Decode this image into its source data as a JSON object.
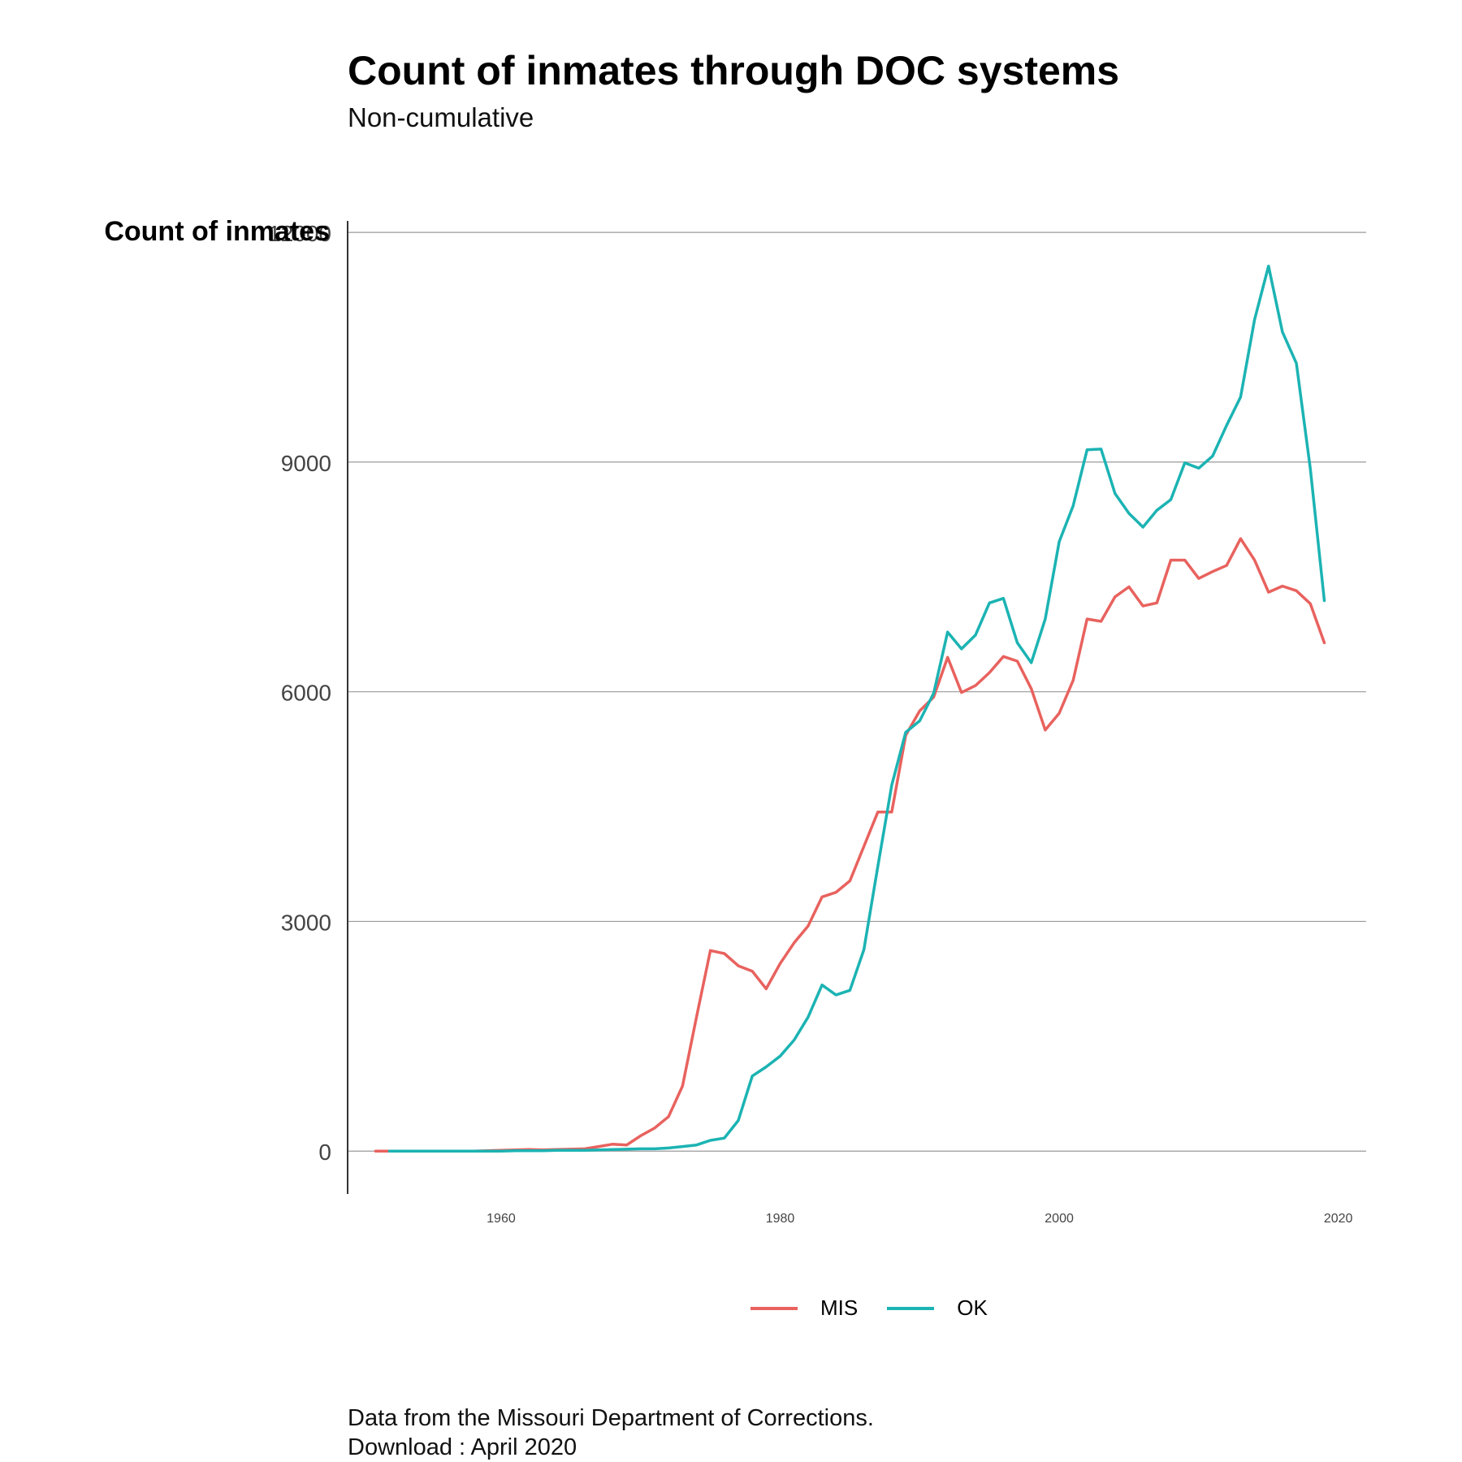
{
  "chart_data": {
    "type": "line",
    "title": "Count of inmates through DOC systems",
    "subtitle": "Non-cumulative",
    "ylabel": "Count of inmates",
    "xlabel": "",
    "xlim": [
      1949,
      2022
    ],
    "ylim": [
      -560,
      12150
    ],
    "yticks": [
      0,
      3000,
      6000,
      9000,
      12000
    ],
    "ytick_labels": [
      "0",
      "3000",
      "6000",
      "9000",
      "12000"
    ],
    "xticks": [
      1960,
      1980,
      2000,
      2020
    ],
    "xtick_labels": [
      "1960",
      "1980",
      "2000",
      "2020"
    ],
    "grid": "horizontal",
    "legend_position": "bottom",
    "series": [
      {
        "name": "MIS",
        "color": "#E8625E",
        "x": [
          1951,
          1952,
          1953,
          1954,
          1955,
          1956,
          1957,
          1958,
          1959,
          1960,
          1961,
          1962,
          1963,
          1964,
          1965,
          1966,
          1967,
          1968,
          1969,
          1970,
          1971,
          1972,
          1973,
          1974,
          1975,
          1976,
          1977,
          1978,
          1979,
          1980,
          1981,
          1982,
          1983,
          1984,
          1985,
          1986,
          1987,
          1988,
          1989,
          1990,
          1991,
          1992,
          1993,
          1994,
          1995,
          1996,
          1997,
          1998,
          1999,
          2000,
          2001,
          2002,
          2003,
          2004,
          2005,
          2006,
          2007,
          2008,
          2009,
          2010,
          2011,
          2012,
          2013,
          2014,
          2015,
          2016,
          2017,
          2018,
          2019
        ],
        "y": [
          0,
          0,
          0,
          0,
          0,
          0,
          0,
          0,
          5,
          10,
          15,
          20,
          15,
          20,
          25,
          30,
          60,
          90,
          80,
          200,
          300,
          450,
          850,
          1750,
          2620,
          2580,
          2420,
          2350,
          2120,
          2450,
          2720,
          2940,
          3320,
          3380,
          3530,
          3980,
          4430,
          4430,
          5430,
          5750,
          5930,
          6450,
          5990,
          6080,
          6250,
          6460,
          6400,
          6040,
          5500,
          5720,
          6150,
          6950,
          6920,
          7240,
          7370,
          7120,
          7160,
          7720,
          7720,
          7480,
          7570,
          7650,
          8000,
          7720,
          7300,
          7380,
          7320,
          7150,
          6640
        ]
      },
      {
        "name": "OK",
        "color": "#1CB3B3",
        "x": [
          1952,
          1953,
          1954,
          1955,
          1956,
          1957,
          1958,
          1959,
          1960,
          1961,
          1962,
          1963,
          1964,
          1965,
          1966,
          1967,
          1968,
          1969,
          1970,
          1971,
          1972,
          1973,
          1974,
          1975,
          1976,
          1977,
          1978,
          1979,
          1980,
          1981,
          1982,
          1983,
          1984,
          1985,
          1986,
          1987,
          1988,
          1989,
          1990,
          1991,
          1992,
          1993,
          1994,
          1995,
          1996,
          1997,
          1998,
          1999,
          2000,
          2001,
          2002,
          2003,
          2004,
          2005,
          2006,
          2007,
          2008,
          2009,
          2010,
          2011,
          2012,
          2013,
          2014,
          2015,
          2016,
          2017,
          2018,
          2019
        ],
        "y": [
          0,
          0,
          0,
          0,
          0,
          0,
          0,
          0,
          0,
          5,
          5,
          5,
          10,
          10,
          10,
          15,
          20,
          25,
          30,
          30,
          40,
          60,
          80,
          140,
          170,
          400,
          980,
          1100,
          1240,
          1450,
          1750,
          2170,
          2040,
          2100,
          2630,
          3720,
          4780,
          5470,
          5620,
          5980,
          6780,
          6560,
          6740,
          7160,
          7220,
          6640,
          6380,
          6950,
          7960,
          8430,
          9160,
          9170,
          8590,
          8330,
          8150,
          8370,
          8510,
          8990,
          8920,
          9080,
          9480,
          9850,
          10860,
          11560,
          10700,
          10290,
          8910,
          7190
        ]
      }
    ]
  },
  "legend": {
    "mis_label": "MIS",
    "ok_label": "OK"
  },
  "caption": {
    "line1": "Data from the Missouri Department of Corrections.",
    "line2": "Download : April 2020"
  }
}
